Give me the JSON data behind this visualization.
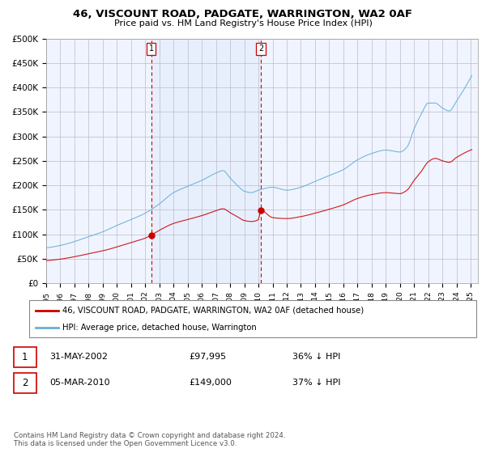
{
  "title": "46, VISCOUNT ROAD, PADGATE, WARRINGTON, WA2 0AF",
  "subtitle": "Price paid vs. HM Land Registry's House Price Index (HPI)",
  "ylabel_ticks": [
    "£0",
    "£50K",
    "£100K",
    "£150K",
    "£200K",
    "£250K",
    "£300K",
    "£350K",
    "£400K",
    "£450K",
    "£500K"
  ],
  "ytick_values": [
    0,
    50000,
    100000,
    150000,
    200000,
    250000,
    300000,
    350000,
    400000,
    450000,
    500000
  ],
  "ylim": [
    0,
    500000
  ],
  "xlim_start": 1995.0,
  "xlim_end": 2025.5,
  "vline1_x": 2002.42,
  "vline2_x": 2010.17,
  "purchase1_x": 2002.42,
  "purchase1_y": 97995,
  "purchase2_x": 2010.17,
  "purchase2_y": 149000,
  "hpi_color": "#6baed6",
  "price_color": "#cc0000",
  "vline_color": "#cc0000",
  "background_color": "#f0f4ff",
  "shade_color": "#d8e8f8",
  "legend_entry1": "46, VISCOUNT ROAD, PADGATE, WARRINGTON, WA2 0AF (detached house)",
  "legend_entry2": "HPI: Average price, detached house, Warrington",
  "table_row1": [
    "1",
    "31-MAY-2002",
    "£97,995",
    "36% ↓ HPI"
  ],
  "table_row2": [
    "2",
    "05-MAR-2010",
    "£149,000",
    "37% ↓ HPI"
  ],
  "footnote": "Contains HM Land Registry data © Crown copyright and database right 2024.\nThis data is licensed under the Open Government Licence v3.0."
}
